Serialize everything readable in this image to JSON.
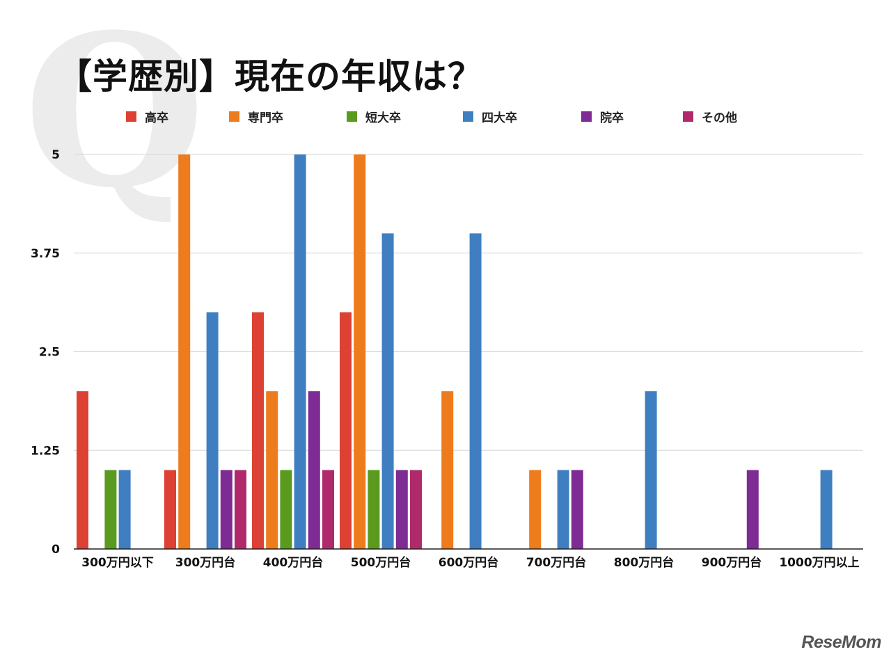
{
  "watermark": "Q",
  "brand": "ReseMom",
  "chart_data": {
    "type": "bar",
    "title": "【学歴別】現在の年収は？",
    "xlabel": "",
    "ylabel": "",
    "ylim": [
      0,
      5
    ],
    "yticks": [
      "0",
      "1.25",
      "2.5",
      "3.75",
      "5"
    ],
    "grid": true,
    "legend_position": "top",
    "categories": [
      "300万円以下",
      "300万円台",
      "400万円台",
      "500万円台",
      "600万円台",
      "700万円台",
      "800万円台",
      "900万円台",
      "1000万円以上"
    ],
    "series": [
      {
        "name": "高卒",
        "color": "#dc4133",
        "values": [
          2,
          1,
          3,
          3,
          0,
          0,
          0,
          0,
          0
        ]
      },
      {
        "name": "専門卒",
        "color": "#ee7b1c",
        "values": [
          0,
          5,
          2,
          5,
          2,
          1,
          0,
          0,
          0
        ]
      },
      {
        "name": "短大卒",
        "color": "#5a9a1e",
        "values": [
          1,
          0,
          1,
          1,
          0,
          0,
          0,
          0,
          0
        ]
      },
      {
        "name": "四大卒",
        "color": "#3f7fc1",
        "values": [
          1,
          3,
          5,
          4,
          4,
          1,
          2,
          0,
          1
        ]
      },
      {
        "name": "院卒",
        "color": "#7e2b94",
        "values": [
          0,
          1,
          2,
          1,
          0,
          1,
          0,
          1,
          0
        ]
      },
      {
        "name": "その他",
        "color": "#b02a6b",
        "values": [
          0,
          1,
          1,
          1,
          0,
          0,
          0,
          0,
          0
        ]
      }
    ]
  }
}
